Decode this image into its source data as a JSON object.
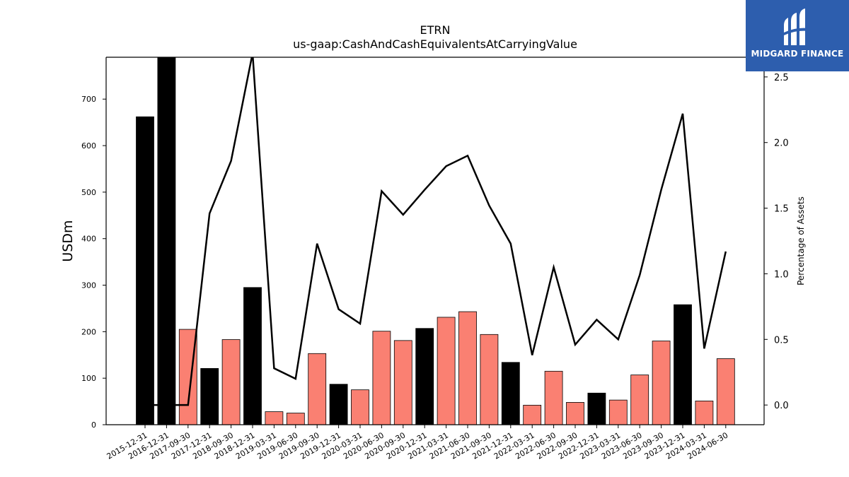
{
  "chart_data": {
    "type": "bar",
    "title": "ETRN",
    "subtitle": "us-gaap:CashAndCashEquivalentsAtCarryingValue",
    "ylabel": "USDm",
    "y2label": "Percentage of Assets",
    "ylim": [
      0,
      790
    ],
    "y2lim": [
      -0.15,
      2.65
    ],
    "yticks": [
      0,
      100,
      200,
      300,
      400,
      500,
      600,
      700
    ],
    "y2ticks": [
      "0.0",
      "0.5",
      "1.0",
      "1.5",
      "2.0",
      "2.5"
    ],
    "categories": [
      "2015-12-31",
      "2016-12-31",
      "2017-09-30",
      "2017-12-31",
      "2018-09-30",
      "2018-12-31",
      "2019-03-31",
      "2019-06-30",
      "2019-09-30",
      "2019-12-31",
      "2020-03-31",
      "2020-06-30",
      "2020-09-30",
      "2020-12-31",
      "2021-03-31",
      "2021-06-30",
      "2021-09-30",
      "2021-12-31",
      "2022-03-31",
      "2022-06-30",
      "2022-09-30",
      "2022-12-31",
      "2023-03-31",
      "2023-06-30",
      "2023-09-30",
      "2023-12-31",
      "2024-03-31",
      "2024-06-30"
    ],
    "series": [
      {
        "type": "bar",
        "values": [
          662,
          790,
          205,
          121,
          183,
          295,
          28,
          25,
          153,
          87,
          75,
          201,
          181,
          207,
          231,
          243,
          194,
          134,
          42,
          115,
          48,
          68,
          53,
          107,
          180,
          258,
          51,
          142
        ],
        "annual": [
          true,
          true,
          false,
          true,
          false,
          true,
          false,
          false,
          false,
          true,
          false,
          false,
          false,
          true,
          false,
          false,
          false,
          true,
          false,
          false,
          false,
          true,
          false,
          false,
          false,
          true,
          false,
          false
        ]
      },
      {
        "type": "line",
        "axis": "right",
        "values": [
          0.0,
          0.0,
          0.0,
          1.46,
          1.86,
          2.68,
          0.28,
          0.2,
          1.23,
          0.73,
          0.62,
          1.63,
          1.45,
          1.64,
          1.82,
          1.9,
          1.52,
          1.23,
          0.38,
          1.05,
          0.46,
          0.65,
          0.5,
          0.99,
          1.64,
          2.22,
          0.43,
          1.17
        ]
      }
    ],
    "colors": {
      "annual": "#000000",
      "interim": "#fa8072",
      "line": "#000000"
    }
  },
  "logo": {
    "text": "MIDGARD FINANCE",
    "background": "#2d5eae"
  }
}
